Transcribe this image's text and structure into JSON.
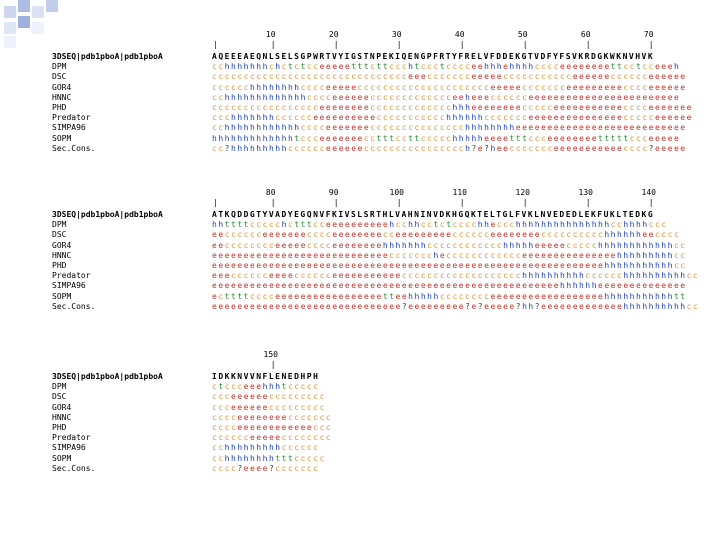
{
  "blocks": [
    {
      "ticks": [
        "10",
        "20",
        "30",
        "40",
        "50",
        "60",
        "70"
      ],
      "query_label": "3DSEQ|pdb1pboA|pdb1pboA",
      "query_seq": "AQEEEAEQNLSELSGPWRTVYIGSTNPEKIQENGPFRTYFRELVFDDEKGTVDFYFSVKRDGKWKNVHVK",
      "rows": [
        {
          "label": "DPM",
          "seq": "cchhhhhhhchctctcceeeeetttcttccchtccctcccceehhhehhhhcccceeeeeeeettcctcceeeh"
        },
        {
          "label": "DSC",
          "seq": "ccccccccccccccccccccccccccccccceeeccccccceeeeeccccccccccceeeeeecccccceeeeee"
        },
        {
          "label": "GOR4",
          "seq": "cccccchhhhhhhhcccceeeeeccccccccccccccccccccceeeeeccccccceeeeeeeeecccceeeeee"
        },
        {
          "label": "HNNC",
          "seq": "cchhhhhhhhhhhhhcccceeeeeeccccccccccccceeheeecccccceeeeeeeeeeeeeeeeeeeeeeee"
        },
        {
          "label": "PHD",
          "seq": "ccccccccccccccccceeeeeeeeccccccccccccchhheeeeeeeeccccceeeeeeeeeeecccceeeeeee"
        },
        {
          "label": "Predator",
          "seq": "ccchhhhhhhcccccceeeeeeeeeeccccccccccchhhhhhccccccceeeeeeeeeeeeeeeccccceeeeee"
        },
        {
          "label": "SIMPA96",
          "seq": "cchhhhhhhhhhhhcccceeeeeeeccccccccccccccchhhhhhhheeeeeeeeeeeeeeeeeeeeeeeeeee"
        },
        {
          "label": "SOPM",
          "seq": "hhhhhhhhhhhhhtccceeeeeeecctttccttccccchhhhheeeetttccceeeeeeeetttttccceeeee"
        },
        {
          "label": "Sec.Cons.",
          "seq": "cc?hhhhhhhhhcccccceeeeeecccccccccccccccch?e?heeccccccceeeeeeeeeeecccc?eeeee"
        }
      ]
    },
    {
      "ticks": [
        "80",
        "90",
        "100",
        "110",
        "120",
        "130",
        "140"
      ],
      "query_label": "3DSEQ|pdb1pboA|pdb1pboA",
      "query_seq": "ATKQDDGTYVADYEGQNVFKIVSLSRTHLVAHNINVDKHGQKTELTGLFVKLNVEDEDLEKFUKLTEDKG",
      "rows": [
        {
          "label": "DPM",
          "seq": "hhttttccccchctttcceeeeeeeeeehcchhcctctcccchheccchhhhhhhhhhhhhhhcchhhhccc"
        },
        {
          "label": "DSC",
          "seq": "eecccccceeeeeeecccceeeeeeeecceeeeeeeeecccccceeeeeeeecccccccccchhhhhheecccc"
        },
        {
          "label": "GOR4",
          "seq": "eecccccccceeeeecccceeeeeeeehhhhhhhcccccccccccchhhhheeeeeccccchhhhhhhhhhhhcc"
        },
        {
          "label": "HNNC",
          "seq": "eeeeeeeeeeeeeeeeeeeeeeeeeeeeccccccchecccccccccccceeeeeeeeeeeeeeehhhhhhhhhcc"
        },
        {
          "label": "PHD",
          "seq": "eeeeeeeeeeeeeeeeeeeeeeeeeeeeeeeeeeeeeeeeeeeeeeeeeeeeeeeeeeeeeehhhhhhhhhhhcc"
        },
        {
          "label": "Predator",
          "seq": "eeecccccceeeecccccceeeeeeeeeeeccccccccccccccccccchhhhhhhhhhcccccchhhhhhhhhhcc"
        },
        {
          "label": "SIMPA96",
          "seq": "eeeeeeeeeeeeeeeeeeeeeeeeeeeeeeeeeeeeeeeeeeeeeeeeeeeeeeehhhhhheeeeeeeeeeeeee"
        },
        {
          "label": "SOPM",
          "seq": "ecttttcccceeeeeeeeeeeeeeeeetteehhhhhcccccccceeeeeeeeeeeeeeeeeehhhhhhhhhhhtt"
        },
        {
          "label": "Sec.Cons.",
          "seq": "eeeeeeeeeeeeeeeeeeeeeeeeeeeeee?eeeeeeeee?e?eeeee?hh?eeeeeeeeeeeeehhhhhhhhhhcc"
        }
      ]
    },
    {
      "ticks": [
        "150"
      ],
      "query_label": "3DSEQ|pdb1pboA|pdb1pboA",
      "query_seq": "IDKKNVVNFLENEDHPH",
      "rows": [
        {
          "label": "DPM",
          "seq": "ctccceeehhhtccccc"
        },
        {
          "label": "DSC",
          "seq": "ccceeeeeeccccccccc"
        },
        {
          "label": "GOR4",
          "seq": "ccceeeeeeccccccccc"
        },
        {
          "label": "HNNC",
          "seq": "cccceeeeeeeeccccccc"
        },
        {
          "label": "PHD",
          "seq": "cccceeeeeeeeeeeeccc"
        },
        {
          "label": "Predator",
          "seq": "cccccceeeeecccccccc"
        },
        {
          "label": "SIMPA96",
          "seq": "cchhhhhhhhhcccccc"
        },
        {
          "label": "SOPM",
          "seq": "cchhhhhhhhtttccccc"
        },
        {
          "label": "Sec.Cons.",
          "seq": "cccc?eeee?ccccccc"
        }
      ]
    }
  ],
  "colors": {
    "h": "#1f3fb8",
    "e": "#c8312a",
    "c": "#d9953a",
    "t": "#2e8b3a"
  }
}
